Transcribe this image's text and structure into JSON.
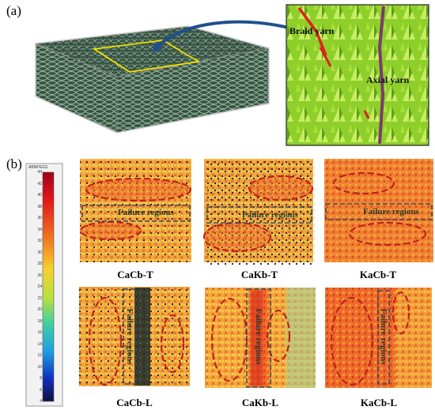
{
  "panel_a": {
    "label": "(a)",
    "inset_labels": {
      "braid": "Braid yarn",
      "axial": "Axial yarn"
    }
  },
  "panel_b": {
    "label": "(b)",
    "colorbar": {
      "header": "ABNPEGS",
      "ticks": [
        "44",
        "42",
        "40",
        "38",
        "36",
        "34",
        "32",
        "30",
        "28",
        "26",
        "24",
        "22",
        "20",
        "18",
        "16",
        "14",
        "12",
        "10",
        "8",
        "6",
        "4"
      ]
    },
    "maps": [
      {
        "caption": "CaCb-T",
        "region_label": "Failure regions"
      },
      {
        "caption": "CaKb-T",
        "region_label": "Failure regions"
      },
      {
        "caption": "KaCb-T",
        "region_label": "Failure regions"
      },
      {
        "caption": "CaCb-L",
        "region_label": "Failure regions"
      },
      {
        "caption": "CaKb-L",
        "region_label": "Failure regions"
      },
      {
        "caption": "KaCb-L",
        "region_label": "Failure regions"
      }
    ]
  },
  "colors": {
    "dashed_ellipse": "#c0201a",
    "dashed_rect": "#3a4a5a",
    "arrow": "#1f4f8f",
    "selection_box": "#f0e000",
    "braid_red": "#e02020",
    "axial_purple": "#7a3b6a"
  }
}
